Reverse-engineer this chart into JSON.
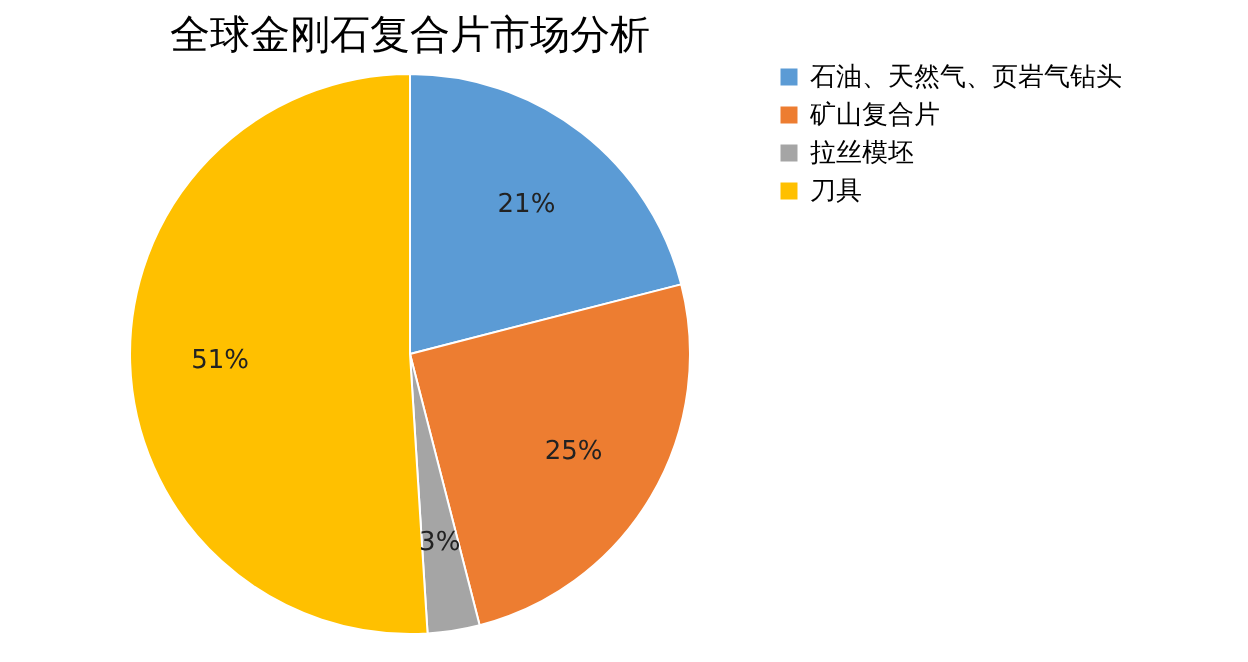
{
  "chart_data": {
    "type": "pie",
    "title": "全球金刚石复合片市场分析",
    "categories": [
      "石油、天然气、页岩气钻头",
      "矿山复合片",
      "拉丝模坯",
      "刀具"
    ],
    "values": [
      21,
      25,
      3,
      51
    ],
    "colors": [
      "#5b9bd5",
      "#ed7d31",
      "#a5a5a5",
      "#ffc000"
    ],
    "value_labels": [
      "21%",
      "25%",
      "3%",
      "51%"
    ],
    "legend": "right"
  }
}
